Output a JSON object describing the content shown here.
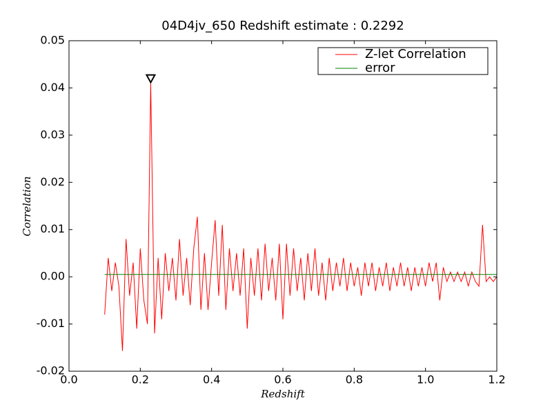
{
  "chart_data": {
    "type": "line",
    "title": "04D4jv_650 Redshift estimate : 0.2292",
    "x_label": "Redshift",
    "y_label": "Correlation",
    "xlim": [
      0,
      1.2
    ],
    "ylim": [
      -0.02,
      0.05
    ],
    "xticks": [
      {
        "value": 0,
        "label": "0.0"
      },
      0.2,
      0.4,
      0.6,
      0.8,
      {
        "value": 1,
        "label": "1.0"
      },
      1.2
    ],
    "yticks": [
      -0.02,
      -0.01,
      {
        "value": 0,
        "label": "0.00"
      },
      0.01,
      0.02,
      0.03,
      0.04,
      0.05
    ],
    "legend": "upper right",
    "peak": {
      "x": 0.2292,
      "y": 0.041,
      "color": "#000000"
    },
    "series": [
      {
        "name": "Z-let Correlation",
        "color": "#ff0000",
        "x": [
          0.1,
          0.11,
          0.12,
          0.13,
          0.14,
          0.15,
          0.16,
          0.17,
          0.18,
          0.19,
          0.2,
          0.21,
          0.22,
          0.2292,
          0.24,
          0.25,
          0.26,
          0.27,
          0.28,
          0.29,
          0.3,
          0.31,
          0.32,
          0.33,
          0.34,
          0.35,
          0.36,
          0.37,
          0.38,
          0.39,
          0.4,
          0.41,
          0.42,
          0.43,
          0.44,
          0.45,
          0.46,
          0.47,
          0.48,
          0.49,
          0.5,
          0.51,
          0.52,
          0.53,
          0.54,
          0.55,
          0.56,
          0.57,
          0.58,
          0.59,
          0.6,
          0.61,
          0.62,
          0.63,
          0.64,
          0.65,
          0.66,
          0.67,
          0.68,
          0.69,
          0.7,
          0.71,
          0.72,
          0.73,
          0.74,
          0.75,
          0.76,
          0.77,
          0.78,
          0.79,
          0.8,
          0.81,
          0.82,
          0.83,
          0.84,
          0.85,
          0.86,
          0.87,
          0.88,
          0.89,
          0.9,
          0.91,
          0.92,
          0.93,
          0.94,
          0.95,
          0.96,
          0.97,
          0.98,
          0.99,
          1.0,
          1.01,
          1.02,
          1.03,
          1.04,
          1.05,
          1.06,
          1.07,
          1.08,
          1.09,
          1.1,
          1.11,
          1.12,
          1.13,
          1.14,
          1.15,
          1.16,
          1.17,
          1.18,
          1.19,
          1.2
        ],
        "values": [
          -0.008,
          0.004,
          -0.003,
          0.003,
          -0.002,
          -0.0157,
          0.008,
          -0.004,
          0.003,
          -0.011,
          0.006,
          -0.005,
          -0.01,
          0.041,
          -0.012,
          0.004,
          -0.009,
          0.005,
          -0.003,
          0.004,
          -0.005,
          0.008,
          -0.004,
          0.004,
          -0.006,
          0.006,
          0.0127,
          -0.007,
          0.005,
          -0.007,
          0.003,
          0.012,
          -0.004,
          0.011,
          -0.007,
          0.006,
          -0.003,
          0.005,
          -0.004,
          0.006,
          -0.011,
          0.004,
          -0.004,
          0.006,
          -0.005,
          0.007,
          -0.003,
          0.004,
          -0.005,
          0.007,
          -0.009,
          0.007,
          -0.004,
          0.006,
          -0.003,
          0.004,
          -0.005,
          0.005,
          -0.003,
          0.006,
          -0.004,
          0.003,
          -0.005,
          0.004,
          -0.003,
          0.003,
          -0.002,
          0.004,
          -0.003,
          0.003,
          -0.002,
          0.002,
          -0.004,
          0.003,
          -0.002,
          0.003,
          -0.003,
          0.002,
          -0.002,
          0.003,
          -0.003,
          0.002,
          -0.002,
          0.003,
          -0.002,
          0.002,
          -0.003,
          0.002,
          -0.002,
          0.002,
          -0.002,
          0.003,
          -0.001,
          0.003,
          -0.005,
          0.002,
          -0.001,
          0.001,
          -0.001,
          0.001,
          -0.001,
          0.001,
          -0.002,
          0.001,
          -0.001,
          -0.002,
          0.011,
          -0.001,
          0.0,
          -0.001,
          0.0
        ]
      },
      {
        "name": "error",
        "color": "#008000",
        "x": [
          0.1,
          1.2
        ],
        "values": [
          0.0005,
          0.0005
        ]
      }
    ]
  }
}
